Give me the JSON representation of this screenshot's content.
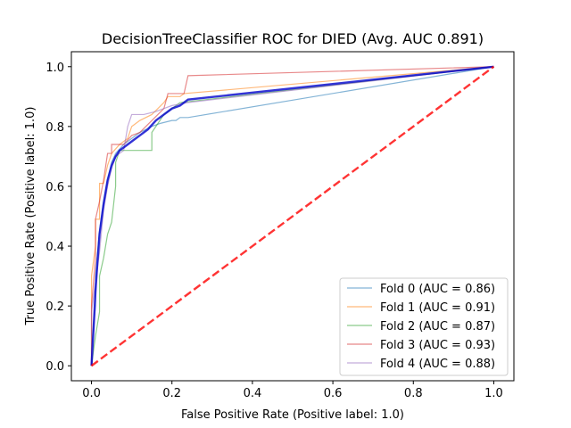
{
  "chart_data": {
    "type": "line",
    "title": "DecisionTreeClassifier ROC for DIED (Avg. AUC 0.891)",
    "xlabel": "False Positive Rate (Positive label: 1.0)",
    "ylabel": "True Positive Rate (Positive label: 1.0)",
    "xlim": [
      -0.05,
      1.05
    ],
    "ylim": [
      -0.05,
      1.05
    ],
    "xticks": [
      "0.0",
      "0.2",
      "0.4",
      "0.6",
      "0.8",
      "1.0"
    ],
    "yticks": [
      "0.0",
      "0.2",
      "0.4",
      "0.6",
      "0.8",
      "1.0"
    ],
    "grid": false,
    "legend_position": "lower-right",
    "series": [
      {
        "name": "Fold 0 (AUC = 0.86)",
        "color": "#1f77b4",
        "x": [
          0.0,
          0.0,
          0.01,
          0.01,
          0.02,
          0.03,
          0.04,
          0.05,
          0.06,
          0.08,
          0.1,
          0.12,
          0.15,
          0.17,
          0.2,
          0.21,
          0.22,
          0.24,
          1.0
        ],
        "y": [
          0.0,
          0.06,
          0.2,
          0.3,
          0.45,
          0.55,
          0.62,
          0.68,
          0.71,
          0.74,
          0.76,
          0.78,
          0.8,
          0.81,
          0.82,
          0.82,
          0.83,
          0.83,
          1.0
        ]
      },
      {
        "name": "Fold 1 (AUC = 0.91)",
        "color": "#ff7f0e",
        "x": [
          0.0,
          0.0,
          0.01,
          0.01,
          0.02,
          0.02,
          0.03,
          0.04,
          0.05,
          0.07,
          0.09,
          0.1,
          0.12,
          0.15,
          0.18,
          0.19,
          0.22,
          0.23,
          1.0
        ],
        "y": [
          0.0,
          0.3,
          0.4,
          0.49,
          0.49,
          0.61,
          0.61,
          0.67,
          0.71,
          0.74,
          0.76,
          0.8,
          0.82,
          0.84,
          0.88,
          0.9,
          0.9,
          0.91,
          1.0
        ]
      },
      {
        "name": "Fold 2 (AUC = 0.87)",
        "color": "#2ca02c",
        "x": [
          0.0,
          0.01,
          0.02,
          0.02,
          0.03,
          0.04,
          0.05,
          0.06,
          0.06,
          0.07,
          0.08,
          0.15,
          0.15,
          0.16,
          0.17,
          0.18,
          0.2,
          0.22,
          1.0
        ],
        "y": [
          0.0,
          0.1,
          0.18,
          0.3,
          0.36,
          0.44,
          0.48,
          0.6,
          0.68,
          0.72,
          0.72,
          0.72,
          0.78,
          0.8,
          0.82,
          0.84,
          0.86,
          0.88,
          1.0
        ]
      },
      {
        "name": "Fold 3 (AUC = 0.93)",
        "color": "#d62728",
        "x": [
          0.0,
          0.0,
          0.01,
          0.01,
          0.02,
          0.03,
          0.04,
          0.05,
          0.05,
          0.08,
          0.1,
          0.12,
          0.15,
          0.18,
          0.19,
          0.23,
          0.24,
          1.0
        ],
        "y": [
          0.0,
          0.2,
          0.36,
          0.49,
          0.55,
          0.62,
          0.71,
          0.71,
          0.74,
          0.74,
          0.77,
          0.78,
          0.82,
          0.86,
          0.91,
          0.91,
          0.97,
          1.0
        ]
      },
      {
        "name": "Fold 4 (AUC = 0.88)",
        "color": "#9467bd",
        "x": [
          0.0,
          0.0,
          0.01,
          0.02,
          0.03,
          0.04,
          0.05,
          0.06,
          0.08,
          0.09,
          0.1,
          0.13,
          0.16,
          0.18,
          0.2,
          0.24,
          1.0
        ],
        "y": [
          0.0,
          0.18,
          0.28,
          0.38,
          0.52,
          0.6,
          0.66,
          0.7,
          0.72,
          0.8,
          0.84,
          0.84,
          0.85,
          0.86,
          0.87,
          0.88,
          1.0
        ]
      },
      {
        "name": "Mean ROC",
        "color": "#0000cc",
        "x": [
          0.0,
          0.005,
          0.01,
          0.015,
          0.02,
          0.03,
          0.04,
          0.05,
          0.06,
          0.07,
          0.08,
          0.1,
          0.12,
          0.14,
          0.16,
          0.18,
          0.2,
          0.22,
          0.24,
          1.0
        ],
        "y": [
          0.0,
          0.12,
          0.25,
          0.35,
          0.44,
          0.54,
          0.62,
          0.67,
          0.7,
          0.72,
          0.73,
          0.75,
          0.77,
          0.79,
          0.82,
          0.84,
          0.86,
          0.87,
          0.89,
          1.0
        ]
      },
      {
        "name": "Chance",
        "color": "#ff0000",
        "x": [
          0.0,
          1.0
        ],
        "y": [
          0.0,
          1.0
        ]
      }
    ]
  }
}
